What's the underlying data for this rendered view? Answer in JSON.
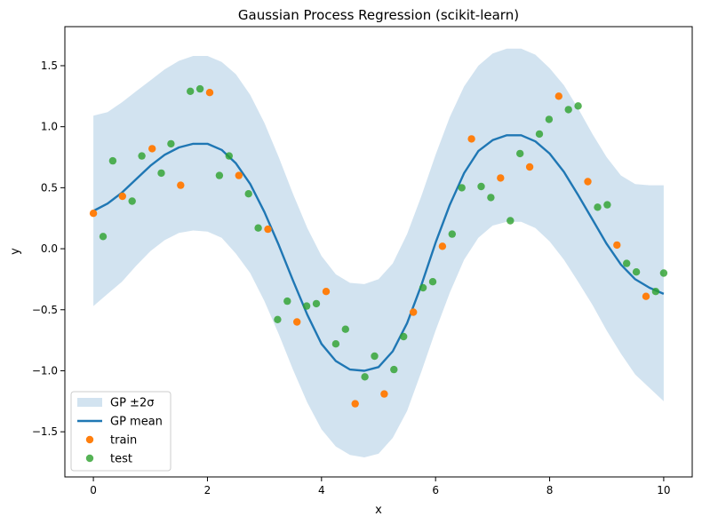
{
  "chart_data": {
    "type": "scatter",
    "title": "Gaussian Process Regression (scikit-learn)",
    "xlabel": "x",
    "ylabel": "y",
    "xlim": [
      -0.5,
      10.5
    ],
    "ylim": [
      -1.87,
      1.82
    ],
    "x_ticks": [
      0,
      2,
      4,
      6,
      8,
      10
    ],
    "x_tick_labels": [
      "0",
      "2",
      "4",
      "6",
      "8",
      "10"
    ],
    "y_ticks": [
      -1.5,
      -1.0,
      -0.5,
      0.0,
      0.5,
      1.0,
      1.5
    ],
    "y_tick_labels": [
      "−1.5",
      "−1.0",
      "−0.5",
      "0.0",
      "0.5",
      "1.0",
      "1.5"
    ],
    "grid": false,
    "legend_position": "lower-left",
    "colors": {
      "band": "#a6c8e2",
      "mean": "#1f77b4",
      "train": "#ff7f0e",
      "test": "#2ca02c"
    },
    "legend": [
      {
        "label": "GP ±2σ",
        "kind": "band"
      },
      {
        "label": "GP mean",
        "kind": "line"
      },
      {
        "label": "train",
        "kind": "train"
      },
      {
        "label": "test",
        "kind": "test"
      }
    ],
    "band": {
      "name": "GP ±2σ",
      "x": [
        0,
        0.25,
        0.5,
        0.75,
        1.0,
        1.25,
        1.5,
        1.75,
        2.0,
        2.25,
        2.5,
        2.75,
        3.0,
        3.25,
        3.5,
        3.75,
        4.0,
        4.25,
        4.5,
        4.75,
        5.0,
        5.25,
        5.5,
        5.75,
        6.0,
        6.25,
        6.5,
        6.75,
        7.0,
        7.25,
        7.5,
        7.75,
        8.0,
        8.25,
        8.5,
        8.75,
        9.0,
        9.25,
        9.5,
        9.75,
        10.0
      ],
      "upper": [
        1.09,
        1.12,
        1.2,
        1.29,
        1.38,
        1.47,
        1.54,
        1.58,
        1.58,
        1.53,
        1.43,
        1.26,
        1.03,
        0.75,
        0.45,
        0.17,
        -0.06,
        -0.21,
        -0.28,
        -0.29,
        -0.25,
        -0.12,
        0.12,
        0.43,
        0.77,
        1.08,
        1.33,
        1.5,
        1.6,
        1.64,
        1.64,
        1.59,
        1.48,
        1.34,
        1.15,
        0.94,
        0.75,
        0.6,
        0.53,
        0.52,
        0.52
      ],
      "lower": [
        -0.47,
        -0.37,
        -0.27,
        -0.14,
        -0.02,
        0.07,
        0.13,
        0.15,
        0.14,
        0.09,
        -0.04,
        -0.2,
        -0.43,
        -0.7,
        -0.99,
        -1.26,
        -1.48,
        -1.62,
        -1.69,
        -1.71,
        -1.68,
        -1.55,
        -1.33,
        -1.01,
        -0.67,
        -0.36,
        -0.09,
        0.09,
        0.19,
        0.22,
        0.22,
        0.17,
        0.06,
        -0.09,
        -0.27,
        -0.46,
        -0.67,
        -0.86,
        -1.03,
        -1.14,
        -1.25
      ]
    },
    "series": [
      {
        "name": "GP mean",
        "x": [
          0,
          0.25,
          0.5,
          0.75,
          1.0,
          1.25,
          1.5,
          1.75,
          2.0,
          2.25,
          2.5,
          2.75,
          3.0,
          3.25,
          3.5,
          3.75,
          4.0,
          4.25,
          4.5,
          4.75,
          5.0,
          5.25,
          5.5,
          5.75,
          6.0,
          6.25,
          6.5,
          6.75,
          7.0,
          7.25,
          7.5,
          7.75,
          8.0,
          8.25,
          8.5,
          8.75,
          9.0,
          9.25,
          9.5,
          9.75,
          10.0
        ],
        "values": [
          0.31,
          0.37,
          0.46,
          0.57,
          0.68,
          0.77,
          0.83,
          0.86,
          0.86,
          0.81,
          0.7,
          0.53,
          0.3,
          0.03,
          -0.26,
          -0.54,
          -0.78,
          -0.92,
          -0.99,
          -1.0,
          -0.97,
          -0.84,
          -0.61,
          -0.3,
          0.05,
          0.36,
          0.62,
          0.8,
          0.89,
          0.93,
          0.93,
          0.88,
          0.78,
          0.63,
          0.44,
          0.24,
          0.04,
          -0.13,
          -0.25,
          -0.32,
          -0.37
        ]
      },
      {
        "name": "train",
        "x": [
          0.0,
          0.51,
          1.03,
          1.53,
          2.04,
          2.55,
          3.06,
          3.57,
          4.08,
          4.59,
          5.1,
          5.61,
          6.12,
          6.63,
          7.14,
          7.65,
          8.16,
          8.67,
          9.18,
          9.69
        ],
        "values": [
          0.29,
          0.43,
          0.82,
          0.52,
          1.28,
          0.6,
          0.16,
          -0.6,
          -0.35,
          -1.27,
          -1.19,
          -0.52,
          0.02,
          0.9,
          0.58,
          0.67,
          1.25,
          0.55,
          0.03,
          -0.39
        ]
      },
      {
        "name": "test",
        "x": [
          0.17,
          0.34,
          0.68,
          0.85,
          1.19,
          1.36,
          1.7,
          1.87,
          2.21,
          2.38,
          2.72,
          2.89,
          3.23,
          3.4,
          3.74,
          3.91,
          4.25,
          4.42,
          4.76,
          4.93,
          5.27,
          5.44,
          5.78,
          5.95,
          6.29,
          6.46,
          6.8,
          6.97,
          7.31,
          7.48,
          7.82,
          7.99,
          8.33,
          8.5,
          8.84,
          9.01,
          9.35,
          9.52,
          9.86,
          10.0
        ],
        "values": [
          0.1,
          0.72,
          0.39,
          0.76,
          0.62,
          0.86,
          1.29,
          1.31,
          0.6,
          0.76,
          0.45,
          0.17,
          -0.58,
          -0.43,
          -0.47,
          -0.45,
          -0.78,
          -0.66,
          -1.05,
          -0.88,
          -0.99,
          -0.72,
          -0.32,
          -0.27,
          0.12,
          0.5,
          0.51,
          0.42,
          0.23,
          0.78,
          0.94,
          1.06,
          1.14,
          1.17,
          0.34,
          0.36,
          -0.12,
          -0.19,
          -0.35,
          -0.2
        ]
      }
    ]
  }
}
